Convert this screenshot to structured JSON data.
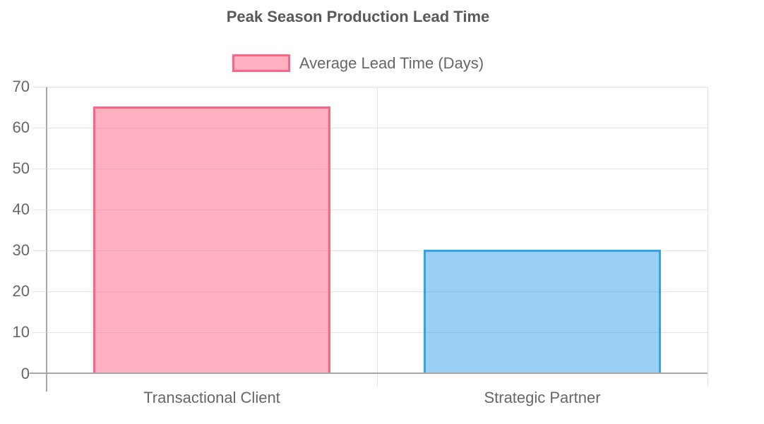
{
  "chart_data": {
    "type": "bar",
    "title": "Peak Season Production Lead Time",
    "legend": {
      "label": "Average Lead Time (Days)",
      "position": "top"
    },
    "categories": [
      "Transactional Client",
      "Strategic Partner"
    ],
    "series": [
      {
        "name": "Average Lead Time (Days)",
        "values": [
          65,
          30
        ]
      }
    ],
    "xlabel": "",
    "ylabel": "",
    "ylim": [
      0,
      70
    ],
    "yticks": [
      0,
      10,
      20,
      30,
      40,
      50,
      60,
      70
    ],
    "grid": true,
    "bar_styles": [
      {
        "fill": "rgba(255, 99, 132, 0.5)",
        "border": "#FF6384"
      },
      {
        "fill": "rgba(54, 162, 235, 0.5)",
        "border": "#36A2EB"
      }
    ],
    "colors": {
      "title": "#595959",
      "label": "#666666",
      "grid": "#e3e3e3",
      "axis": "#a6a6a6",
      "background": "#ffffff"
    }
  }
}
